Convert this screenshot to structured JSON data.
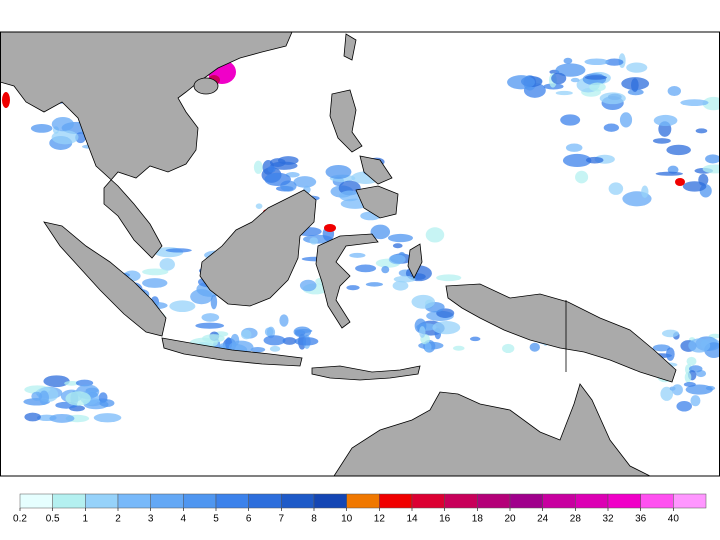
{
  "colorbar": {
    "levels": [
      0.2,
      0.5,
      1,
      2,
      3,
      4,
      5,
      6,
      7,
      8,
      10,
      12,
      14,
      16,
      18,
      20,
      24,
      28,
      32,
      36,
      40
    ],
    "colors": [
      "#e6ffff",
      "#b4f0f0",
      "#96d2fa",
      "#78b9fa",
      "#64a8f5",
      "#4f96f0",
      "#3c82eb",
      "#2d6edc",
      "#1e5ac8",
      "#1446b4",
      "#f07800",
      "#f00000",
      "#dc0032",
      "#c8005a",
      "#b40078",
      "#a0008c",
      "#c800a0",
      "#dc00b4",
      "#f000c8",
      "#ff50f0",
      "#ff96ff"
    ]
  }
}
